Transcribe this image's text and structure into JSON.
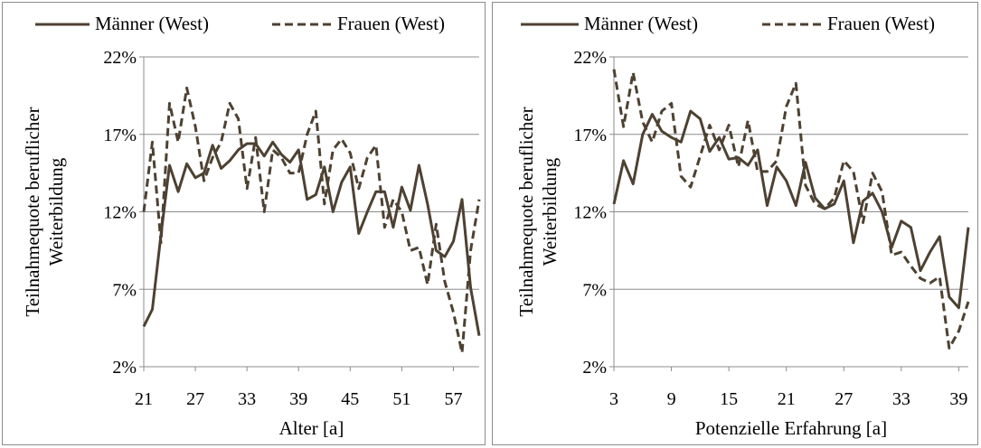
{
  "colors": {
    "series": "#4d4132",
    "grid": "#8c8c8c",
    "axis": "#8c8c8c"
  },
  "chart_data": [
    {
      "type": "line",
      "title": "",
      "xlabel": "Alter [a]",
      "ylabel_lines": [
        "Teilnahmequote beruflicher",
        "Weiterbildung"
      ],
      "x_ticks": [
        "21",
        "27",
        "33",
        "39",
        "45",
        "51",
        "57"
      ],
      "y_ticks": [
        "2%",
        "7%",
        "12%",
        "17%",
        "22%"
      ],
      "xlim": [
        21,
        60
      ],
      "ylim": [
        2,
        22
      ],
      "legend": {
        "placement": "top"
      },
      "grid": "horizontal",
      "series": [
        {
          "name": "Männer (West)",
          "style": "solid",
          "x": [
            21,
            22,
            23,
            24,
            25,
            26,
            27,
            28,
            29,
            30,
            31,
            32,
            33,
            34,
            35,
            36,
            37,
            38,
            39,
            40,
            41,
            42,
            43,
            44,
            45,
            46,
            47,
            48,
            49,
            50,
            51,
            52,
            53,
            54,
            55,
            56,
            57,
            58,
            59,
            60
          ],
          "values": [
            4.6,
            5.7,
            10.5,
            15.0,
            13.3,
            15.1,
            14.2,
            14.5,
            16.3,
            14.8,
            15.3,
            16.0,
            16.4,
            16.4,
            15.6,
            16.5,
            15.7,
            15.2,
            16.0,
            12.8,
            13.1,
            14.9,
            12.0,
            13.9,
            14.9,
            10.6,
            12.0,
            13.3,
            13.3,
            11.0,
            13.6,
            12.1,
            15.0,
            12.5,
            9.5,
            9.1,
            10.1,
            12.8,
            7.1,
            4.0
          ]
        },
        {
          "name": "Frauen (West)",
          "style": "dashed",
          "x": [
            21,
            22,
            23,
            24,
            25,
            26,
            27,
            28,
            29,
            30,
            31,
            32,
            33,
            34,
            35,
            36,
            37,
            38,
            39,
            40,
            41,
            42,
            43,
            44,
            45,
            46,
            47,
            48,
            49,
            50,
            51,
            52,
            53,
            54,
            55,
            56,
            57,
            58,
            59,
            60
          ],
          "values": [
            12.0,
            16.5,
            10.0,
            19.0,
            16.5,
            20.0,
            17.5,
            14.0,
            15.5,
            16.5,
            19.0,
            18.0,
            13.5,
            16.8,
            12.0,
            16.0,
            15.5,
            14.5,
            14.5,
            17.0,
            18.5,
            12.5,
            16.0,
            16.7,
            15.8,
            13.5,
            15.5,
            16.3,
            11.0,
            12.8,
            12.0,
            9.5,
            9.7,
            7.3,
            11.2,
            7.5,
            5.5,
            2.9,
            9.5,
            12.8
          ]
        }
      ]
    },
    {
      "type": "line",
      "title": "",
      "xlabel": "Potenzielle Erfahrung [a]",
      "ylabel_lines": [
        "Teilnahmequote beruflicher",
        "Weiterbildung"
      ],
      "x_ticks": [
        "3",
        "9",
        "15",
        "21",
        "27",
        "33",
        "39"
      ],
      "y_ticks": [
        "2%",
        "7%",
        "12%",
        "17%",
        "22%"
      ],
      "xlim": [
        3,
        40
      ],
      "ylim": [
        2,
        22
      ],
      "legend": {
        "placement": "top"
      },
      "grid": "horizontal",
      "series": [
        {
          "name": "Männer (West)",
          "style": "solid",
          "x": [
            3,
            4,
            5,
            6,
            7,
            8,
            9,
            10,
            11,
            12,
            13,
            14,
            15,
            16,
            17,
            18,
            19,
            20,
            21,
            22,
            23,
            24,
            25,
            26,
            27,
            28,
            29,
            30,
            31,
            32,
            33,
            34,
            35,
            36,
            37,
            38,
            39,
            40
          ],
          "values": [
            12.5,
            15.3,
            13.8,
            17.0,
            18.3,
            17.2,
            16.8,
            16.5,
            18.5,
            18.0,
            15.9,
            16.8,
            15.4,
            15.5,
            15.0,
            16.0,
            12.4,
            14.9,
            14.0,
            12.4,
            15.2,
            12.9,
            12.2,
            12.5,
            14.0,
            10.0,
            12.7,
            13.2,
            12.0,
            9.7,
            11.4,
            11.0,
            8.2,
            9.4,
            10.4,
            6.5,
            5.8,
            11.0
          ]
        },
        {
          "name": "Frauen (West)",
          "style": "dashed",
          "x": [
            3,
            4,
            5,
            6,
            7,
            8,
            9,
            10,
            11,
            12,
            13,
            14,
            15,
            16,
            17,
            18,
            19,
            20,
            21,
            22,
            23,
            24,
            25,
            26,
            27,
            28,
            29,
            30,
            31,
            32,
            33,
            34,
            35,
            36,
            37,
            38,
            39,
            40
          ],
          "values": [
            21.2,
            17.5,
            21.0,
            17.8,
            16.5,
            18.5,
            19.0,
            14.3,
            13.6,
            15.6,
            17.6,
            16.0,
            17.6,
            14.9,
            17.9,
            14.6,
            14.6,
            15.3,
            18.8,
            20.3,
            13.7,
            12.5,
            12.2,
            12.9,
            15.3,
            14.6,
            11.3,
            14.5,
            13.3,
            9.2,
            9.4,
            8.5,
            7.7,
            7.4,
            7.8,
            3.2,
            4.3,
            6.2
          ]
        }
      ]
    }
  ]
}
